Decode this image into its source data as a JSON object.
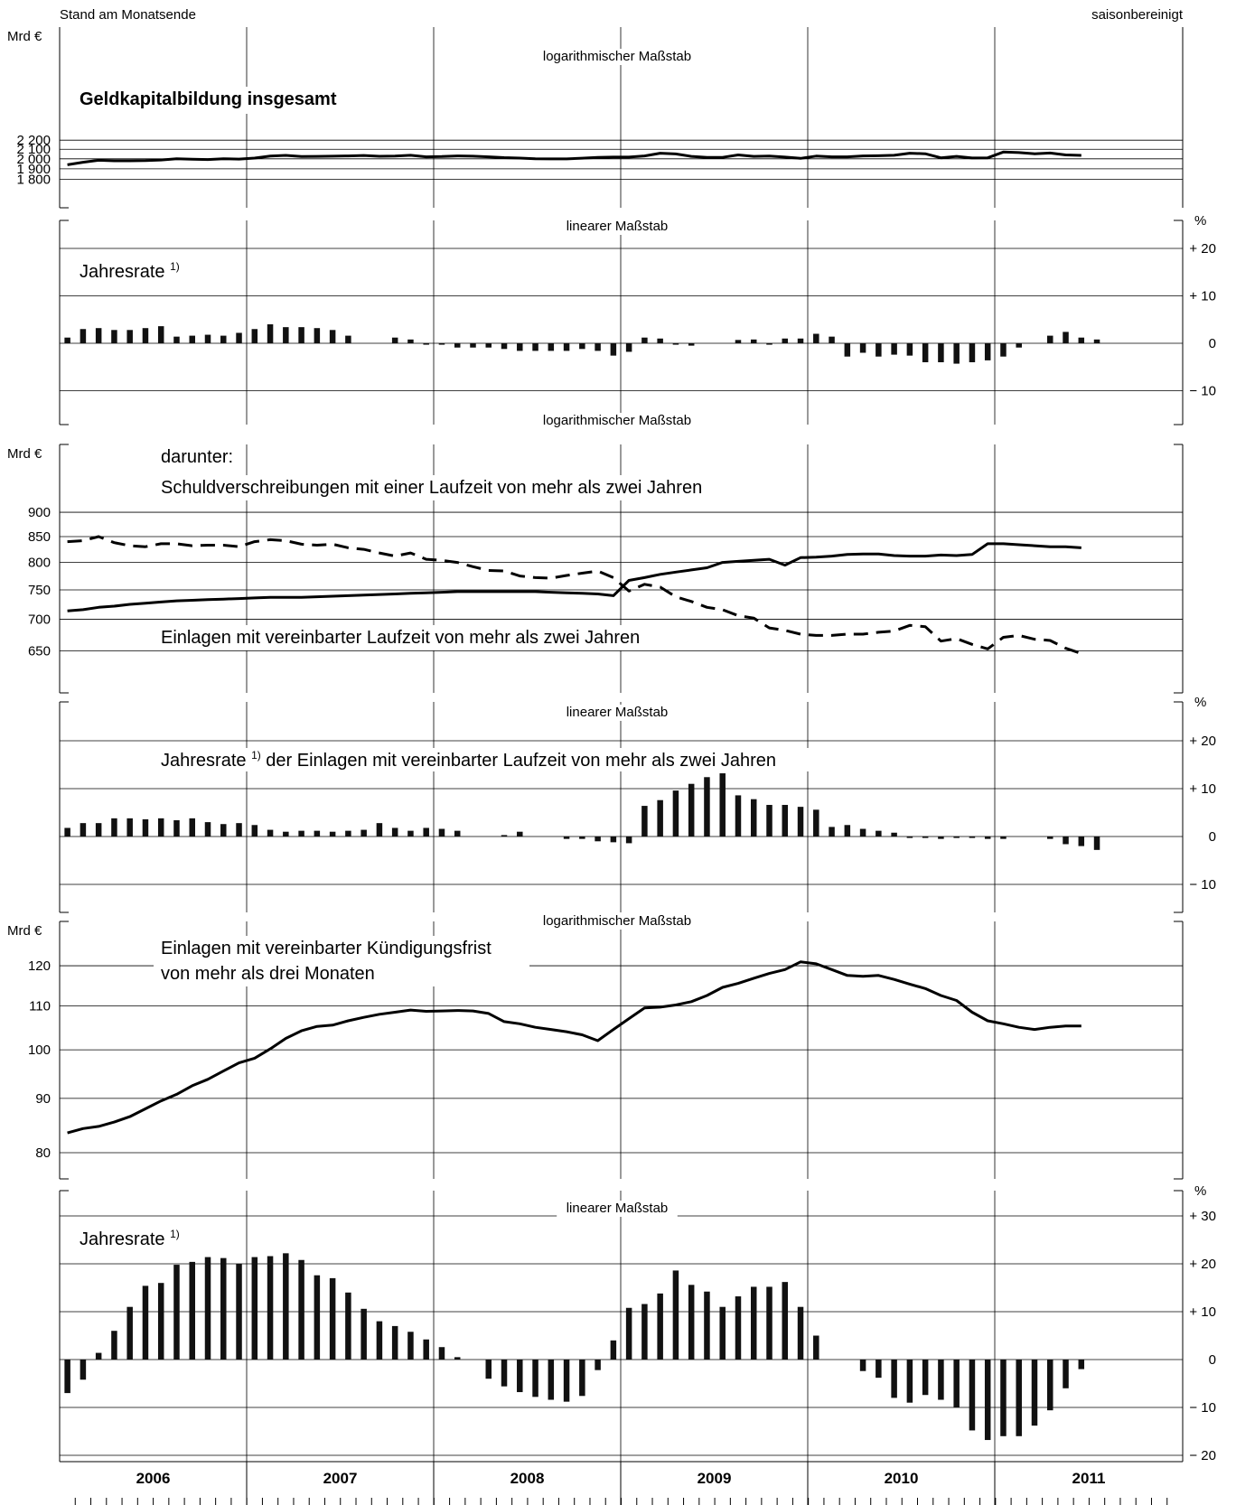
{
  "header": {
    "left_label": "Stand am Monatsende",
    "right_label": "saisonbereinigt"
  },
  "x_axis": {
    "years": [
      "2006",
      "2007",
      "2008",
      "2009",
      "2010",
      "2011"
    ]
  },
  "chart_data": [
    {
      "type": "line",
      "panel": "geldkapital-level",
      "scale_label": "logarithmischer Maßstab",
      "unit_label": "Mrd €",
      "title": "Geldkapitalbildung insgesamt",
      "log_scale": true,
      "ylim": [
        1750,
        2300
      ],
      "y_ticks": [
        1800,
        1900,
        2000,
        2100,
        2200
      ],
      "y_tick_labels": [
        "1 800",
        "1 900",
        "2 000",
        "2 100",
        "2 200"
      ],
      "x_start": "2006-01",
      "series": [
        {
          "style": "solid",
          "values": [
            1940,
            1965,
            1985,
            1980,
            1980,
            1982,
            1988,
            2000,
            1995,
            1993,
            2000,
            1997,
            2007,
            2028,
            2035,
            2024,
            2025,
            2027,
            2030,
            2034,
            2026,
            2028,
            2036,
            2020,
            2023,
            2030,
            2027,
            2020,
            2012,
            2007,
            2000,
            1999,
            1999,
            2006,
            2015,
            2018,
            2018,
            2030,
            2058,
            2050,
            2025,
            2015,
            2015,
            2040,
            2025,
            2028,
            2018,
            2005,
            2028,
            2020,
            2020,
            2030,
            2032,
            2036,
            2058,
            2052,
            2010,
            2025,
            2008,
            2010,
            2070,
            2065,
            2052,
            2060,
            2040,
            2035
          ]
        }
      ]
    },
    {
      "type": "bar",
      "panel": "geldkapital-rate",
      "scale_label": "linearer Maßstab",
      "unit_label": "%",
      "title": "Jahresrate",
      "footnote_mark": "1)",
      "ylim": [
        -20,
        25
      ],
      "y_ticks": [
        -10,
        0,
        10,
        20
      ],
      "y_tick_labels": [
        "− 10",
        "0",
        "+ 10",
        "+ 20"
      ],
      "x_start": "2006-01",
      "values": [
        1.2,
        3.0,
        3.2,
        2.8,
        2.8,
        3.2,
        3.6,
        1.4,
        1.6,
        1.8,
        1.6,
        2.2,
        3.0,
        4.0,
        3.4,
        3.4,
        3.2,
        2.8,
        1.6,
        0,
        0,
        1.2,
        0.8,
        -0.3,
        -0.3,
        -0.9,
        -0.9,
        -0.9,
        -1.2,
        -1.6,
        -1.6,
        -1.6,
        -1.6,
        -1.2,
        -1.6,
        -2.6,
        -1.8,
        1.2,
        1.0,
        -0.3,
        -0.5,
        0,
        0,
        0.7,
        0.8,
        -0.3,
        1.0,
        1.0,
        2.0,
        1.4,
        -2.8,
        -2.0,
        -2.8,
        -2.4,
        -2.6,
        -4.0,
        -4.0,
        -4.3,
        -4.0,
        -3.6,
        -2.8,
        -0.9,
        0,
        1.6,
        2.4,
        1.2,
        0.8
      ]
    },
    {
      "type": "line",
      "panel": "laufzeit-level",
      "scale_label": "logarithmischer Maßstab",
      "unit_label": "Mrd €",
      "prefix_label": "darunter:",
      "log_scale": true,
      "ylim": [
        610,
        960
      ],
      "y_ticks": [
        650,
        700,
        750,
        800,
        850,
        900
      ],
      "y_tick_labels": [
        "650",
        "700",
        "750",
        "800",
        "850",
        "900"
      ],
      "x_start": "2006-01",
      "series": [
        {
          "name": "Schuldverschreibungen mit einer Laufzeit von mehr als zwei Jahren",
          "style": "dashed",
          "values": [
            840,
            842,
            850,
            838,
            832,
            830,
            836,
            836,
            832,
            833,
            833,
            830,
            840,
            844,
            842,
            835,
            833,
            835,
            828,
            825,
            818,
            812,
            818,
            806,
            804,
            800,
            792,
            785,
            784,
            775,
            772,
            771,
            776,
            780,
            784,
            772,
            748,
            760,
            755,
            738,
            730,
            720,
            716,
            706,
            702,
            686,
            682,
            676,
            674,
            674,
            676,
            676,
            679,
            681,
            690,
            688,
            665,
            669,
            660,
            653,
            671,
            674,
            668,
            666,
            654,
            646
          ]
        },
        {
          "name": "Einlagen mit vereinbarter Laufzeit von mehr als zwei Jahren",
          "style": "solid",
          "values": [
            714,
            716,
            720,
            722,
            725,
            727,
            729,
            731,
            732,
            733,
            734,
            735,
            736,
            737,
            737,
            737,
            738,
            739,
            740,
            741,
            742,
            743,
            744,
            745,
            746,
            747,
            747,
            747,
            747,
            747,
            747,
            746,
            745,
            744,
            743,
            740,
            767,
            772,
            778,
            782,
            786,
            790,
            800,
            802,
            804,
            806,
            795,
            809,
            810,
            812,
            815,
            816,
            816,
            813,
            812,
            812,
            814,
            813,
            815,
            836,
            836,
            834,
            832,
            830,
            830,
            828
          ]
        }
      ]
    },
    {
      "type": "bar",
      "panel": "laufzeit-rate",
      "scale_label": "linearer Maßstab",
      "unit_label": "%",
      "title": "Jahresrate der Einlagen mit vereinbarter Laufzeit von mehr als zwei Jahren",
      "title_before_footnote": "Jahresrate",
      "footnote_mark": "1)",
      "title_after_footnote": "der Einlagen mit vereinbarter Laufzeit von mehr als zwei Jahren",
      "ylim": [
        -15,
        25
      ],
      "y_ticks": [
        -10,
        0,
        10,
        20
      ],
      "y_tick_labels": [
        "− 10",
        "0",
        "+ 10",
        "+ 20"
      ],
      "x_start": "2006-01",
      "values": [
        1.8,
        2.8,
        2.8,
        3.8,
        3.8,
        3.6,
        3.8,
        3.4,
        3.8,
        3.0,
        2.6,
        2.8,
        2.4,
        1.4,
        1.0,
        1.2,
        1.2,
        1.0,
        1.2,
        1.4,
        2.8,
        1.8,
        1.2,
        1.8,
        1.6,
        1.2,
        0,
        0,
        0.3,
        1.0,
        0,
        0,
        -0.5,
        -0.5,
        -1.0,
        -1.2,
        -1.4,
        6.4,
        7.6,
        9.6,
        11.0,
        12.4,
        13.2,
        8.6,
        7.8,
        6.6,
        6.6,
        6.2,
        5.6,
        2.0,
        2.4,
        1.6,
        1.2,
        0.8,
        -0.3,
        -0.3,
        -0.5,
        -0.3,
        -0.3,
        -0.5,
        -0.5,
        0,
        0,
        -0.5,
        -1.6,
        -2.0,
        -2.8
      ]
    },
    {
      "type": "line",
      "panel": "kuendigung-level",
      "scale_label": "logarithmischer Maßstab",
      "unit_label": "Mrd €",
      "title": "Einlagen mit vereinbarter Kündigungsfrist von mehr als drei Monaten",
      "title_line1": "Einlagen mit vereinbarter Kündigungsfrist",
      "title_line2": "von mehr als drei Monaten",
      "log_scale": true,
      "ylim": [
        77,
        127
      ],
      "y_ticks": [
        80,
        90,
        100,
        110,
        120
      ],
      "y_tick_labels": [
        "80",
        "90",
        "100",
        "110",
        "120"
      ],
      "x_start": "2006-01",
      "series": [
        {
          "style": "solid",
          "values": [
            83.5,
            84.3,
            84.7,
            85.5,
            86.5,
            88.0,
            89.5,
            90.8,
            92.5,
            93.8,
            95.5,
            97.2,
            98.2,
            100.2,
            102.5,
            104.2,
            105.2,
            105.5,
            106.5,
            107.3,
            108.0,
            108.5,
            109.0,
            108.7,
            108.8,
            108.9,
            108.8,
            108.2,
            106.3,
            105.8,
            105.0,
            104.5,
            104.0,
            103.3,
            102.0,
            104.5,
            107.0,
            109.5,
            109.7,
            110.2,
            111.0,
            112.5,
            114.5,
            115.5,
            116.8,
            118.0,
            119.0,
            121.0,
            120.5,
            119.0,
            117.5,
            117.3,
            117.5,
            116.5,
            115.3,
            114.2,
            112.5,
            111.3,
            108.5,
            106.5,
            105.8,
            105.0,
            104.5,
            105.0,
            105.3,
            105.3
          ]
        }
      ]
    },
    {
      "type": "bar",
      "panel": "kuendigung-rate",
      "scale_label": "linearer Maßstab",
      "unit_label": "%",
      "title": "Jahresrate",
      "footnote_mark": "1)",
      "ylim": [
        -25,
        35
      ],
      "y_ticks": [
        -20,
        -10,
        0,
        10,
        20,
        30
      ],
      "y_tick_labels": [
        "− 20",
        "− 10",
        "0",
        "+ 10",
        "+ 20",
        "+ 30"
      ],
      "x_start": "2006-01",
      "values": [
        -7.0,
        -4.2,
        1.4,
        6.0,
        11.0,
        15.4,
        16.0,
        19.8,
        20.4,
        21.4,
        21.2,
        20.0,
        21.4,
        21.6,
        22.2,
        20.8,
        17.6,
        17.0,
        14.0,
        10.6,
        8.0,
        7.0,
        5.8,
        4.2,
        2.6,
        0.5,
        0,
        -4.0,
        -5.6,
        -6.8,
        -7.8,
        -8.4,
        -8.8,
        -7.6,
        -2.2,
        4.0,
        10.8,
        11.6,
        13.8,
        18.6,
        15.6,
        14.2,
        11.0,
        13.2,
        15.2,
        15.2,
        16.2,
        11.0,
        5.0,
        0,
        0,
        -2.4,
        -3.8,
        -8.0,
        -9.0,
        -7.4,
        -8.4,
        -10.0,
        -14.8,
        -16.8,
        -16.0,
        -16.0,
        -13.8,
        -10.6,
        -6.0,
        -2.0
      ]
    }
  ]
}
